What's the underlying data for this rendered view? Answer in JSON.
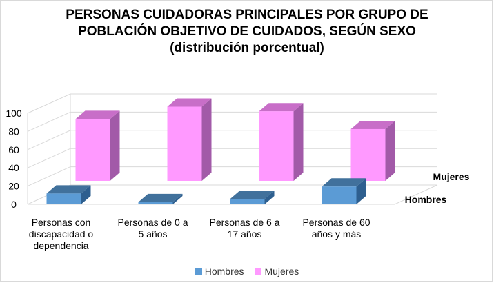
{
  "chart_data": {
    "type": "bar",
    "title": [
      "PERSONAS CUIDADORAS PRINCIPALES POR GRUPO DE",
      "POBLACIÓN OBJETIVO DE CUIDADOS, SEGÚN SEXO",
      "(distribución porcentual)"
    ],
    "categories": [
      [
        "Personas con",
        "discapacidad o",
        "dependencia"
      ],
      [
        "Personas de 0 a",
        "5 años"
      ],
      [
        "Personas de 6 a",
        "17 años"
      ],
      [
        "Personas de 60",
        "años y más"
      ]
    ],
    "series": [
      {
        "name": "Hombres",
        "values": [
          20,
          4,
          10,
          33
        ],
        "color": "#5b9bd5"
      },
      {
        "name": "Mujeres",
        "values": [
          80,
          96,
          90,
          67
        ],
        "color": "#ff99ff"
      }
    ],
    "yticks": [
      "0",
      "20",
      "40",
      "60",
      "80",
      "100"
    ],
    "ylim": [
      0,
      100
    ],
    "grid": true,
    "legend_position": "bottom"
  }
}
